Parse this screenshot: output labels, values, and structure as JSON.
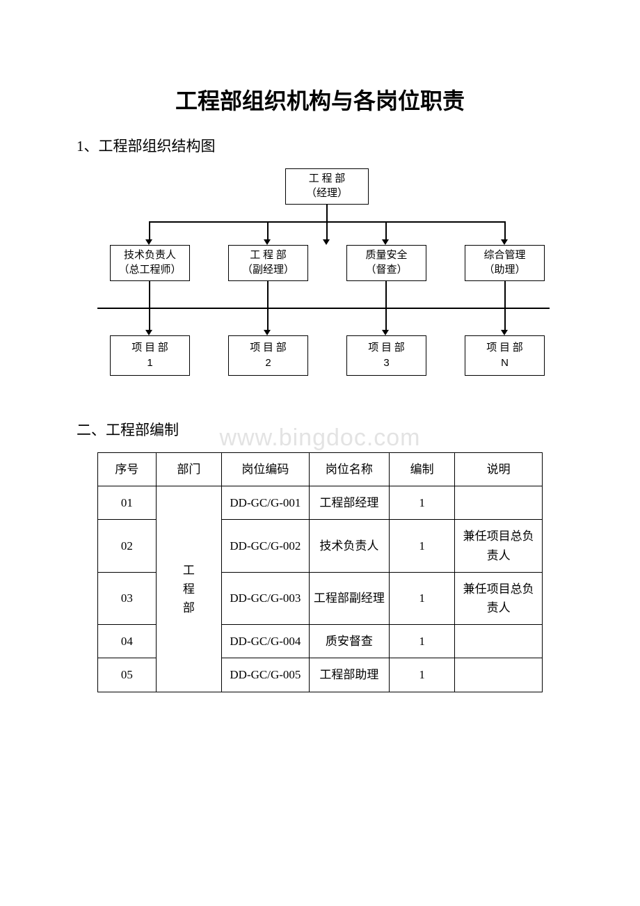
{
  "title": "工程部组织机构与各岗位职责",
  "section1_heading": "1、工程部组织结构图",
  "section2_heading": "二、工程部编制",
  "watermark": "www.bingdoc.com",
  "org": {
    "root": {
      "line1": "工 程 部",
      "line2": "（经理）"
    },
    "level2": [
      {
        "line1": "技术负责人",
        "line2": "（总工程师）"
      },
      {
        "line1": "工 程 部",
        "line2": "（副经理）"
      },
      {
        "line1": "质量安全",
        "line2": "（督查）"
      },
      {
        "line1": "综合管理",
        "line2": "（助理）"
      }
    ],
    "level3": [
      {
        "line1": "项 目 部",
        "line2": "1"
      },
      {
        "line1": "项 目 部",
        "line2": "2"
      },
      {
        "line1": "项 目 部",
        "line2": "3"
      },
      {
        "line1": "项 目 部",
        "line2": "N"
      }
    ],
    "box_border_color": "#000000",
    "line_color": "#000000",
    "font_size": 15
  },
  "table": {
    "columns": [
      "序号",
      "部门",
      "岗位编码",
      "岗位名称",
      "编制",
      "说明"
    ],
    "dept_merged": "工\n程\n部",
    "rows": [
      {
        "seq": "01",
        "code": "DD-GC/G-001",
        "name": "工程部经理",
        "count": "1",
        "note": ""
      },
      {
        "seq": "02",
        "code": "DD-GC/G-002",
        "name": "技术负责人",
        "count": "1",
        "note": "兼任项目总负责人"
      },
      {
        "seq": "03",
        "code": "DD-GC/G-003",
        "name": "工程部副经理",
        "count": "1",
        "note": "兼任项目总负责人"
      },
      {
        "seq": "04",
        "code": "DD-GC/G-004",
        "name": "质安督查",
        "count": "1",
        "note": ""
      },
      {
        "seq": "05",
        "code": "DD-GC/G-005",
        "name": "工程部助理",
        "count": "1",
        "note": ""
      }
    ],
    "border_color": "#000000",
    "font_size": 17
  }
}
